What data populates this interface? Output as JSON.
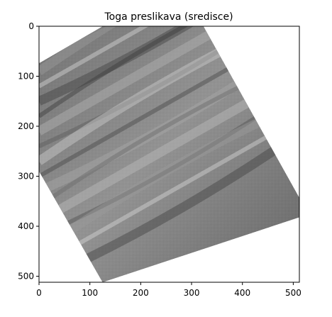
{
  "chart_data": {
    "type": "image",
    "title": "Toga preslikava (sredisce)",
    "xlabel": "",
    "ylabel": "",
    "image_size": [
      512,
      512
    ],
    "xlim": [
      0,
      512
    ],
    "ylim": [
      512,
      0
    ],
    "y_axis_inverted": true,
    "xticks": [
      0,
      100,
      200,
      300,
      400,
      500
    ],
    "yticks": [
      0,
      100,
      200,
      300,
      400,
      500
    ],
    "xtick_labels": [
      "0",
      "100",
      "200",
      "300",
      "400",
      "500"
    ],
    "ytick_labels": [
      "0",
      "100",
      "200",
      "300",
      "400",
      "500"
    ],
    "grid": false,
    "image_content": {
      "description_colormap": "gray",
      "rotation_deg": -30,
      "rotated_corners_data_units": [
        [
          0,
          74
        ],
        [
          275,
          -88
        ],
        [
          530,
          376
        ],
        [
          125,
          512
        ],
        [
          0,
          290
        ]
      ],
      "background_color": "#ffffff"
    }
  },
  "colors": {
    "axis": "#000000",
    "background": "#ffffff"
  }
}
